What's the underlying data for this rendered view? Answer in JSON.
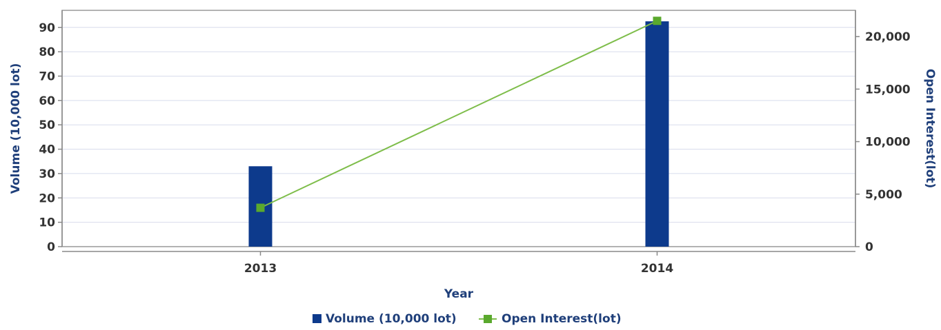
{
  "chart_data": {
    "type": "bar-line-combo",
    "title": "",
    "categories": [
      "2013",
      "2014"
    ],
    "xlabel": "Year",
    "y_left": {
      "label": "Volume (10,000 lot)",
      "ticks": [
        "0",
        "10",
        "20",
        "30",
        "40",
        "50",
        "60",
        "70",
        "80",
        "90"
      ],
      "ylim": [
        0,
        97
      ]
    },
    "y_right": {
      "label": "Open Interest(lot)",
      "ticks": [
        "0",
        "5,000",
        "10,000",
        "15,000",
        "20,000"
      ],
      "ylim": [
        0,
        22500
      ]
    },
    "series": [
      {
        "name": "Volume (10,000 lot)",
        "type": "bar",
        "axis": "left",
        "values": [
          33,
          92.5
        ],
        "color": "#0d3a8c"
      },
      {
        "name": "Open Interest(lot)",
        "type": "line",
        "axis": "right",
        "values": [
          3700,
          21500
        ],
        "color": "#7ebd4a",
        "marker_color": "#5aa92d"
      }
    ],
    "grid": true,
    "legend_position": "bottom-center"
  }
}
